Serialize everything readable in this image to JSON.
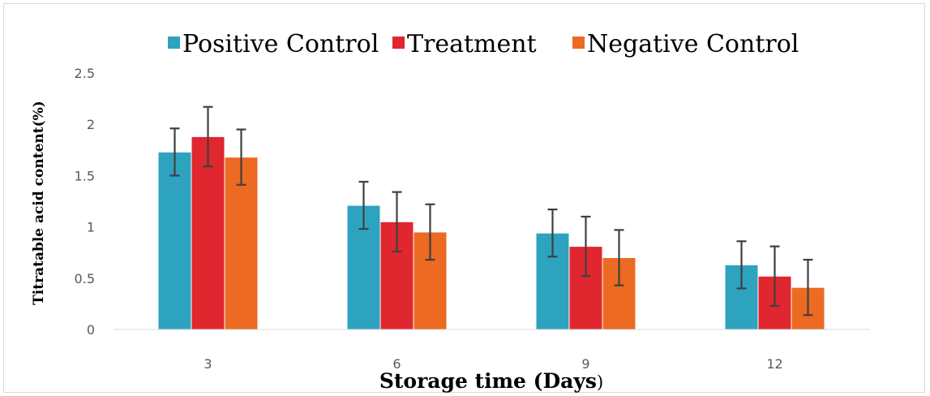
{
  "chart_data": {
    "type": "bar",
    "title": "",
    "xlabel": "Storage time (Days",
    "xlabel_suffix": ")",
    "ylabel": "Titratable acid content(%)",
    "categories": [
      "3",
      "6",
      "9",
      "12"
    ],
    "ylim": [
      0,
      2.5
    ],
    "yticks": [
      "0",
      "0.5",
      "1",
      "1.5",
      "2",
      "2.5"
    ],
    "grid": false,
    "legend_position": "top",
    "series": [
      {
        "name": "Positive Control",
        "color": "#2EA3BF",
        "values": [
          1.73,
          1.21,
          0.94,
          0.63
        ],
        "errors": [
          0.23,
          0.23,
          0.23,
          0.23
        ]
      },
      {
        "name": "Treatment",
        "color": "#E0262F",
        "values": [
          1.88,
          1.05,
          0.81,
          0.52
        ],
        "errors": [
          0.29,
          0.29,
          0.29,
          0.29
        ]
      },
      {
        "name": "Negative Control",
        "color": "#EC6A22",
        "values": [
          1.68,
          0.95,
          0.7,
          0.41
        ],
        "errors": [
          0.27,
          0.27,
          0.27,
          0.27
        ]
      }
    ]
  }
}
